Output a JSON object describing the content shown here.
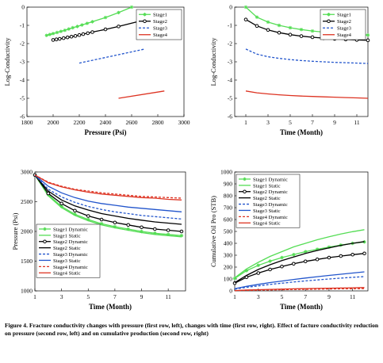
{
  "caption": "Figure 4. Fracture conductivity changes with pressure (first row, left), changes with time (first row, right). Effect of facture conductivity reduction on pressure (second row, left) and on cumulative production (second row, right)",
  "colors": {
    "stage1": "#55dd55",
    "stage2": "#000000",
    "stage3": "#2255cc",
    "stage4": "#dd3322"
  },
  "chart_data": [
    {
      "type": "line",
      "xlabel": "Pressure (Psi)",
      "ylabel": "Log-Conductivity",
      "xlim": [
        1800,
        3000
      ],
      "ylim": [
        -6,
        0
      ],
      "xticks": [
        1800,
        2000,
        2200,
        2400,
        2600,
        2800,
        3000
      ],
      "yticks": [
        0,
        -1,
        -2,
        -3,
        -4,
        -5,
        -6
      ],
      "legend": "top-right",
      "series": [
        {
          "name": "Stage1",
          "color": "#55dd55",
          "style": "solid",
          "marker": "star",
          "x": [
            1950,
            1975,
            2000,
            2030,
            2060,
            2090,
            2120,
            2150,
            2185,
            2220,
            2260,
            2300,
            2400,
            2500,
            2600
          ],
          "y": [
            -1.55,
            -1.5,
            -1.45,
            -1.39,
            -1.33,
            -1.27,
            -1.2,
            -1.13,
            -1.06,
            -0.98,
            -0.89,
            -0.8,
            -0.57,
            -0.3,
            0.0
          ]
        },
        {
          "name": "Stage2",
          "color": "#000000",
          "style": "solid",
          "marker": "circle",
          "x": [
            2000,
            2025,
            2050,
            2080,
            2110,
            2140,
            2170,
            2200,
            2230,
            2265,
            2300,
            2400,
            2500,
            2700
          ],
          "y": [
            -1.8,
            -1.77,
            -1.74,
            -1.7,
            -1.66,
            -1.62,
            -1.58,
            -1.53,
            -1.48,
            -1.43,
            -1.37,
            -1.22,
            -1.06,
            -0.7
          ]
        },
        {
          "name": "Stage3",
          "color": "#2255cc",
          "style": "dashed",
          "marker": "none",
          "x": [
            2200,
            2700
          ],
          "y": [
            -3.07,
            -2.3
          ]
        },
        {
          "name": "Stage4",
          "color": "#dd3322",
          "style": "solid",
          "marker": "none",
          "x": [
            2500,
            2850
          ],
          "y": [
            -5.0,
            -4.6
          ]
        }
      ]
    },
    {
      "type": "line",
      "xlabel": "Time (Month)",
      "ylabel": "Log-Conductivity",
      "xlim": [
        0,
        12
      ],
      "ylim": [
        -6,
        0
      ],
      "xticks": [
        1,
        3,
        5,
        7,
        9,
        11
      ],
      "yticks": [
        0,
        -1,
        -2,
        -3,
        -4,
        -5,
        -6
      ],
      "legend": "top-right",
      "series": [
        {
          "name": "Stage1",
          "color": "#55dd55",
          "style": "solid",
          "marker": "star",
          "x": [
            1,
            2,
            3,
            4,
            5,
            6,
            7,
            8,
            9,
            10,
            11,
            12
          ],
          "y": [
            0.0,
            -0.55,
            -0.82,
            -1.0,
            -1.13,
            -1.23,
            -1.31,
            -1.37,
            -1.42,
            -1.46,
            -1.5,
            -1.53
          ]
        },
        {
          "name": "Stage2",
          "color": "#000000",
          "style": "solid",
          "marker": "circle",
          "x": [
            1,
            2,
            3,
            4,
            5,
            6,
            7,
            8,
            9,
            10,
            11,
            12
          ],
          "y": [
            -0.68,
            -1.03,
            -1.25,
            -1.4,
            -1.51,
            -1.59,
            -1.65,
            -1.7,
            -1.74,
            -1.77,
            -1.8,
            -1.82
          ]
        },
        {
          "name": "Stage3",
          "color": "#2255cc",
          "style": "dashed",
          "marker": "none",
          "x": [
            1,
            2,
            3,
            4,
            5,
            6,
            7,
            8,
            9,
            10,
            11,
            12
          ],
          "y": [
            -2.3,
            -2.58,
            -2.72,
            -2.81,
            -2.88,
            -2.93,
            -2.97,
            -3.0,
            -3.03,
            -3.05,
            -3.07,
            -3.09
          ]
        },
        {
          "name": "Stage4",
          "color": "#dd3322",
          "style": "solid",
          "marker": "none",
          "x": [
            1,
            2,
            3,
            4,
            5,
            6,
            7,
            8,
            9,
            10,
            11,
            12
          ],
          "y": [
            -4.6,
            -4.7,
            -4.76,
            -4.81,
            -4.85,
            -4.88,
            -4.9,
            -4.92,
            -4.94,
            -4.96,
            -4.98,
            -5.0
          ]
        }
      ]
    },
    {
      "type": "line",
      "xlabel": "Time (Month)",
      "ylabel": "Pressure (Psi)",
      "xlim": [
        1,
        12.3
      ],
      "ylim": [
        1000,
        3000
      ],
      "xticks": [
        1,
        3,
        5,
        7,
        9,
        11
      ],
      "yticks": [
        1000,
        1500,
        2000,
        2500,
        3000
      ],
      "legend": "bottom-left",
      "series": [
        {
          "name": "Stage1 Dynamic",
          "color": "#55dd55",
          "style": "solid",
          "marker": "star",
          "x": [
            1,
            2,
            3,
            4,
            5,
            6,
            7,
            8,
            9,
            10,
            11,
            12
          ],
          "y": [
            2950,
            2620,
            2420,
            2290,
            2200,
            2130,
            2080,
            2040,
            2000,
            1970,
            1950,
            1930
          ]
        },
        {
          "name": "Stage1 Static",
          "color": "#55dd55",
          "style": "solid",
          "marker": "none",
          "x": [
            1,
            2,
            3,
            4,
            5,
            6,
            7,
            8,
            9,
            10,
            11,
            12
          ],
          "y": [
            2950,
            2600,
            2400,
            2270,
            2180,
            2110,
            2060,
            2020,
            1980,
            1950,
            1930,
            1910
          ]
        },
        {
          "name": "Stage2 Dynamic",
          "color": "#000000",
          "style": "solid",
          "marker": "circle",
          "x": [
            1,
            2,
            3,
            4,
            5,
            6,
            7,
            8,
            9,
            10,
            11,
            12
          ],
          "y": [
            2950,
            2640,
            2470,
            2350,
            2260,
            2200,
            2150,
            2110,
            2070,
            2040,
            2020,
            2000
          ]
        },
        {
          "name": "Stage2 Static",
          "color": "#000000",
          "style": "solid",
          "marker": "none",
          "x": [
            1,
            2,
            3,
            4,
            5,
            6,
            7,
            8,
            9,
            10,
            11,
            12
          ],
          "y": [
            2950,
            2680,
            2530,
            2430,
            2360,
            2300,
            2260,
            2220,
            2190,
            2160,
            2140,
            2120
          ]
        },
        {
          "name": "Stage3 Dynamic",
          "color": "#2255cc",
          "style": "dashed",
          "marker": "none",
          "x": [
            1,
            2,
            3,
            4,
            5,
            6,
            7,
            8,
            9,
            10,
            11,
            12
          ],
          "y": [
            2950,
            2710,
            2580,
            2490,
            2420,
            2370,
            2330,
            2300,
            2270,
            2250,
            2230,
            2210
          ]
        },
        {
          "name": "Stage3 Static",
          "color": "#2255cc",
          "style": "solid",
          "marker": "none",
          "x": [
            1,
            2,
            3,
            4,
            5,
            6,
            7,
            8,
            9,
            10,
            11,
            12
          ],
          "y": [
            2950,
            2760,
            2650,
            2570,
            2510,
            2470,
            2440,
            2410,
            2390,
            2370,
            2350,
            2330
          ]
        },
        {
          "name": "Stage4 Dynamic",
          "color": "#dd3322",
          "style": "dashed",
          "marker": "none",
          "x": [
            1,
            2,
            3,
            4,
            5,
            6,
            7,
            8,
            9,
            10,
            11,
            12
          ],
          "y": [
            2950,
            2830,
            2760,
            2710,
            2680,
            2650,
            2630,
            2610,
            2590,
            2580,
            2570,
            2560
          ]
        },
        {
          "name": "Stage4 Static",
          "color": "#dd3322",
          "style": "solid",
          "marker": "none",
          "x": [
            1,
            2,
            3,
            4,
            5,
            6,
            7,
            8,
            9,
            10,
            11,
            12
          ],
          "y": [
            2950,
            2820,
            2750,
            2700,
            2660,
            2630,
            2610,
            2590,
            2570,
            2560,
            2540,
            2530
          ]
        }
      ]
    },
    {
      "type": "line",
      "xlabel": "Time (Month)",
      "ylabel": "Cumulative Oil Pro (STB)",
      "xlim": [
        1,
        12.3
      ],
      "ylim": [
        0,
        1000
      ],
      "xticks": [
        1,
        3,
        5,
        7,
        9,
        11
      ],
      "yticks": [
        0,
        100,
        200,
        300,
        400,
        500,
        600,
        700,
        800,
        900,
        1000
      ],
      "legend": "top-left",
      "series": [
        {
          "name": "Stage1 Dynamic",
          "color": "#55dd55",
          "style": "solid",
          "marker": "star",
          "x": [
            1,
            2,
            3,
            4,
            5,
            6,
            7,
            8,
            9,
            10,
            11,
            12
          ],
          "y": [
            105,
            170,
            215,
            250,
            280,
            305,
            330,
            350,
            368,
            385,
            400,
            412
          ]
        },
        {
          "name": "Stage1 Static",
          "color": "#55dd55",
          "style": "solid",
          "marker": "none",
          "x": [
            1,
            2,
            3,
            4,
            5,
            6,
            7,
            8,
            9,
            10,
            11,
            12
          ],
          "y": [
            110,
            185,
            240,
            290,
            330,
            370,
            400,
            430,
            455,
            478,
            498,
            515
          ]
        },
        {
          "name": "Stage2 Dynamic",
          "color": "#000000",
          "style": "solid",
          "marker": "circle",
          "x": [
            1,
            2,
            3,
            4,
            5,
            6,
            7,
            8,
            9,
            10,
            11,
            12
          ],
          "y": [
            65,
            115,
            150,
            180,
            205,
            228,
            248,
            265,
            280,
            293,
            305,
            315
          ]
        },
        {
          "name": "Stage2 Static",
          "color": "#000000",
          "style": "solid",
          "marker": "none",
          "x": [
            1,
            2,
            3,
            4,
            5,
            6,
            7,
            8,
            9,
            10,
            11,
            12
          ],
          "y": [
            70,
            130,
            180,
            220,
            255,
            285,
            315,
            340,
            362,
            383,
            400,
            415
          ]
        },
        {
          "name": "Stage3 Dynamic",
          "color": "#2255cc",
          "style": "dashed",
          "marker": "none",
          "x": [
            1,
            2,
            3,
            4,
            5,
            6,
            7,
            8,
            9,
            10,
            11,
            12
          ],
          "y": [
            15,
            30,
            42,
            55,
            65,
            75,
            84,
            92,
            100,
            107,
            114,
            120
          ]
        },
        {
          "name": "Stage3 Static",
          "color": "#2255cc",
          "style": "solid",
          "marker": "none",
          "x": [
            1,
            2,
            3,
            4,
            5,
            6,
            7,
            8,
            9,
            10,
            11,
            12
          ],
          "y": [
            18,
            38,
            55,
            70,
            83,
            96,
            108,
            119,
            130,
            140,
            150,
            160
          ]
        },
        {
          "name": "Stage4 Dynamic",
          "color": "#dd3322",
          "style": "dashed",
          "marker": "none",
          "x": [
            1,
            2,
            3,
            4,
            5,
            6,
            7,
            8,
            9,
            10,
            11,
            12
          ],
          "y": [
            2,
            4,
            6,
            8,
            10,
            12,
            13,
            15,
            16,
            17,
            18,
            19
          ]
        },
        {
          "name": "Stage4 Static",
          "color": "#dd3322",
          "style": "solid",
          "marker": "none",
          "x": [
            1,
            2,
            3,
            4,
            5,
            6,
            7,
            8,
            9,
            10,
            11,
            12
          ],
          "y": [
            3,
            7,
            10,
            13,
            15,
            17,
            19,
            21,
            23,
            24,
            26,
            28
          ]
        }
      ]
    }
  ]
}
